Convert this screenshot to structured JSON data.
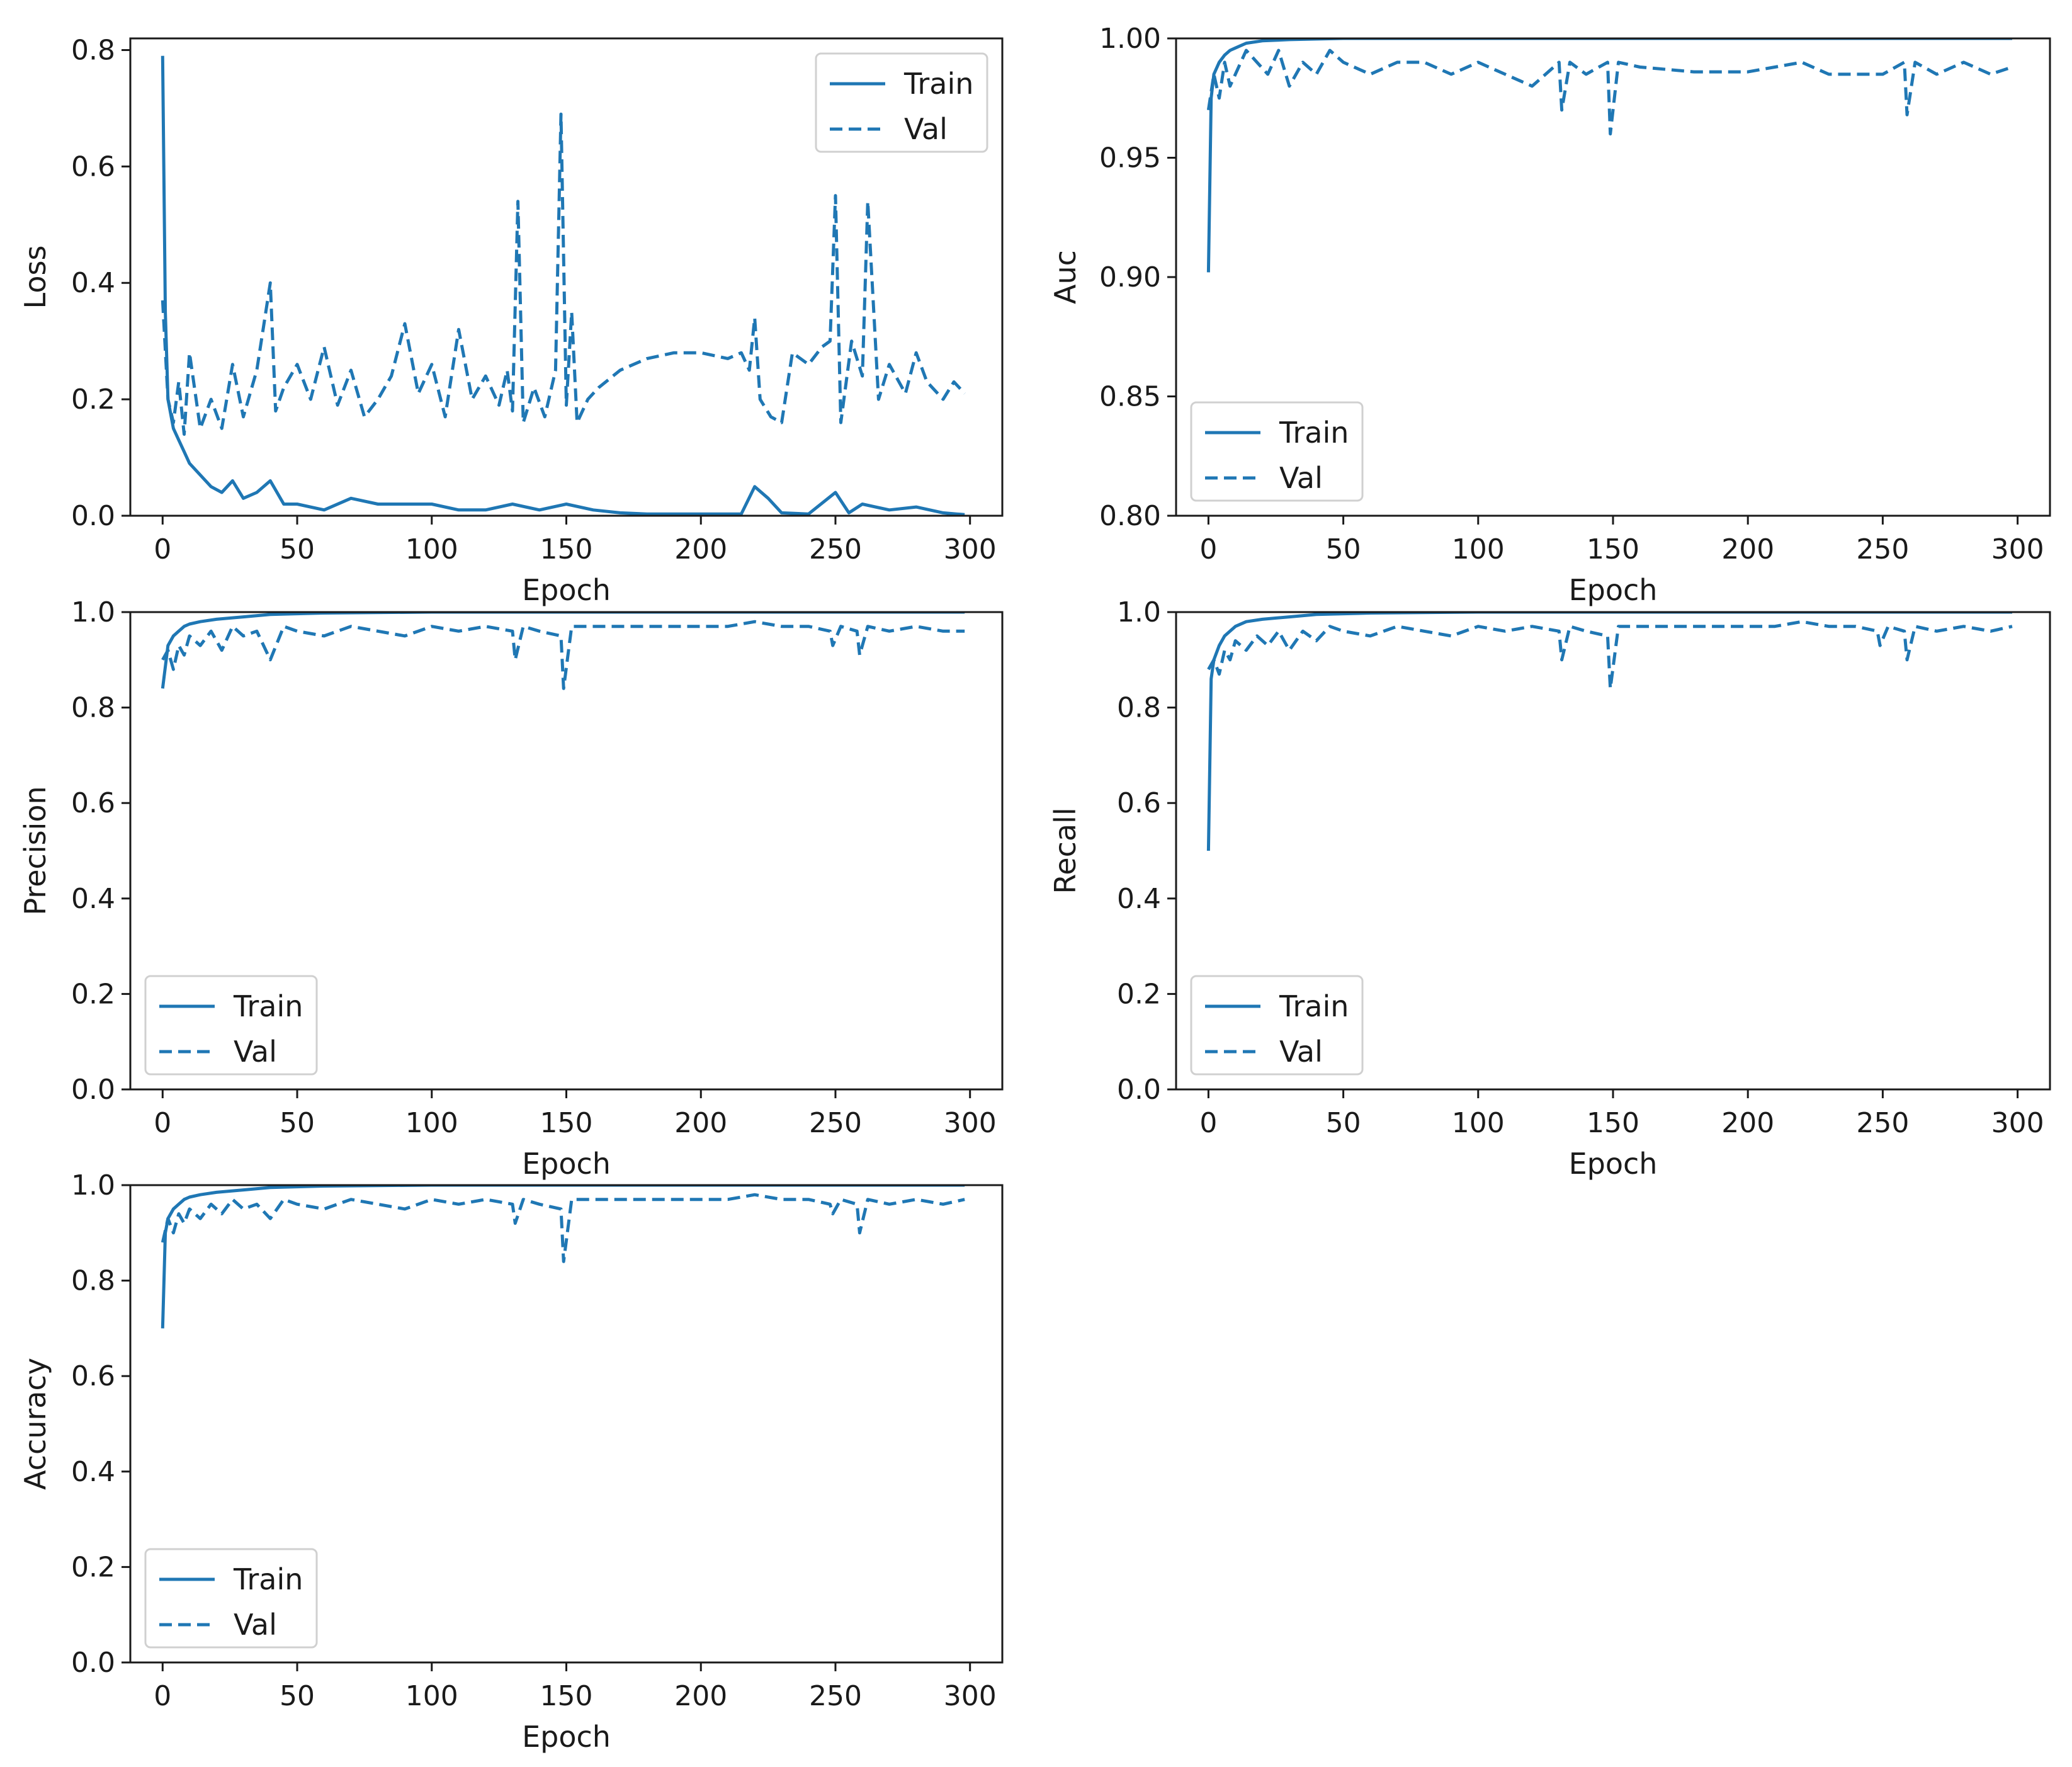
{
  "chart_data": [
    {
      "type": "line",
      "xlabel": "Epoch",
      "ylabel": "Loss",
      "xlim": [
        -12,
        312
      ],
      "ylim": [
        0.0,
        0.82
      ],
      "xticks": [
        "0",
        "50",
        "100",
        "150",
        "200",
        "250",
        "300"
      ],
      "yticks": [
        "0.0",
        "0.2",
        "0.4",
        "0.6",
        "0.8"
      ],
      "legend_loc": "upper right",
      "series": [
        {
          "name": "Train",
          "style": "solid",
          "x": [
            0,
            1,
            2,
            4,
            6,
            8,
            10,
            14,
            18,
            22,
            26,
            30,
            35,
            40,
            45,
            50,
            60,
            70,
            80,
            90,
            100,
            110,
            120,
            130,
            140,
            150,
            160,
            170,
            180,
            200,
            215,
            220,
            225,
            230,
            240,
            250,
            255,
            260,
            270,
            280,
            290,
            295,
            298
          ],
          "y": [
            0.79,
            0.35,
            0.2,
            0.15,
            0.13,
            0.11,
            0.09,
            0.07,
            0.05,
            0.04,
            0.06,
            0.03,
            0.04,
            0.06,
            0.02,
            0.02,
            0.01,
            0.03,
            0.02,
            0.02,
            0.02,
            0.01,
            0.01,
            0.02,
            0.01,
            0.02,
            0.01,
            0.005,
            0.003,
            0.003,
            0.003,
            0.05,
            0.03,
            0.005,
            0.003,
            0.04,
            0.005,
            0.02,
            0.01,
            0.015,
            0.005,
            0.003,
            0.002
          ]
        },
        {
          "name": "Val",
          "style": "dashed",
          "x": [
            0,
            2,
            4,
            6,
            8,
            10,
            14,
            18,
            22,
            26,
            30,
            35,
            40,
            42,
            45,
            50,
            55,
            60,
            65,
            70,
            75,
            80,
            85,
            90,
            95,
            100,
            105,
            110,
            115,
            120,
            125,
            128,
            130,
            132,
            134,
            138,
            142,
            146,
            148,
            150,
            152,
            154,
            158,
            162,
            170,
            180,
            190,
            200,
            210,
            215,
            218,
            220,
            222,
            226,
            230,
            234,
            240,
            245,
            248,
            250,
            252,
            256,
            260,
            262,
            266,
            270,
            276,
            280,
            284,
            290,
            294,
            298
          ],
          "y": [
            0.37,
            0.2,
            0.16,
            0.23,
            0.14,
            0.28,
            0.15,
            0.2,
            0.15,
            0.26,
            0.17,
            0.25,
            0.4,
            0.18,
            0.22,
            0.26,
            0.2,
            0.29,
            0.19,
            0.25,
            0.17,
            0.2,
            0.24,
            0.33,
            0.21,
            0.26,
            0.17,
            0.32,
            0.2,
            0.24,
            0.19,
            0.25,
            0.18,
            0.54,
            0.16,
            0.22,
            0.17,
            0.25,
            0.69,
            0.19,
            0.35,
            0.16,
            0.2,
            0.22,
            0.25,
            0.27,
            0.28,
            0.28,
            0.27,
            0.28,
            0.25,
            0.34,
            0.2,
            0.17,
            0.16,
            0.28,
            0.26,
            0.29,
            0.3,
            0.55,
            0.16,
            0.3,
            0.24,
            0.54,
            0.2,
            0.26,
            0.21,
            0.28,
            0.23,
            0.2,
            0.23,
            0.21
          ]
        }
      ]
    },
    {
      "type": "line",
      "xlabel": "Epoch",
      "ylabel": "Auc",
      "xlim": [
        -12,
        312
      ],
      "ylim": [
        0.8,
        1.0
      ],
      "xticks": [
        "0",
        "50",
        "100",
        "150",
        "200",
        "250",
        "300"
      ],
      "yticks": [
        "0.80",
        "0.85",
        "0.90",
        "0.95",
        "1.00"
      ],
      "legend_loc": "lower left",
      "series": [
        {
          "name": "Train",
          "style": "solid",
          "x": [
            0,
            1,
            2,
            4,
            6,
            8,
            10,
            14,
            20,
            30,
            50,
            100,
            150,
            200,
            250,
            298
          ],
          "y": [
            0.902,
            0.975,
            0.985,
            0.99,
            0.993,
            0.995,
            0.996,
            0.998,
            0.999,
            0.9995,
            1.0,
            1.0,
            1.0,
            1.0,
            1.0,
            1.0
          ]
        },
        {
          "name": "Val",
          "style": "dashed",
          "x": [
            0,
            2,
            4,
            6,
            8,
            10,
            14,
            18,
            22,
            26,
            30,
            35,
            40,
            45,
            50,
            60,
            70,
            80,
            90,
            100,
            110,
            120,
            130,
            131,
            134,
            140,
            148,
            149,
            152,
            160,
            170,
            180,
            190,
            200,
            210,
            220,
            230,
            240,
            250,
            258,
            259,
            262,
            270,
            280,
            290,
            298
          ],
          "y": [
            0.97,
            0.985,
            0.975,
            0.99,
            0.98,
            0.985,
            0.995,
            0.99,
            0.985,
            0.995,
            0.98,
            0.99,
            0.985,
            0.995,
            0.99,
            0.985,
            0.99,
            0.99,
            0.985,
            0.99,
            0.985,
            0.98,
            0.99,
            0.97,
            0.99,
            0.985,
            0.99,
            0.96,
            0.99,
            0.988,
            0.987,
            0.986,
            0.986,
            0.986,
            0.988,
            0.99,
            0.985,
            0.985,
            0.985,
            0.99,
            0.968,
            0.99,
            0.985,
            0.99,
            0.985,
            0.988
          ]
        }
      ]
    },
    {
      "type": "line",
      "xlabel": "Epoch",
      "ylabel": "Precision",
      "xlim": [
        -12,
        312
      ],
      "ylim": [
        0.0,
        1.0
      ],
      "xticks": [
        "0",
        "50",
        "100",
        "150",
        "200",
        "250",
        "300"
      ],
      "yticks": [
        "0.0",
        "0.2",
        "0.4",
        "0.6",
        "0.8",
        "1.0"
      ],
      "legend_loc": "lower left",
      "series": [
        {
          "name": "Train",
          "style": "solid",
          "x": [
            0,
            2,
            4,
            6,
            8,
            10,
            14,
            20,
            30,
            40,
            60,
            100,
            150,
            200,
            250,
            298
          ],
          "y": [
            0.84,
            0.93,
            0.95,
            0.96,
            0.97,
            0.975,
            0.98,
            0.985,
            0.99,
            0.995,
            0.998,
            1.0,
            1.0,
            1.0,
            1.0,
            1.0
          ]
        },
        {
          "name": "Val",
          "style": "dashed",
          "x": [
            0,
            2,
            4,
            6,
            8,
            10,
            14,
            18,
            22,
            26,
            30,
            35,
            40,
            45,
            50,
            60,
            70,
            80,
            90,
            100,
            110,
            120,
            130,
            131,
            134,
            140,
            148,
            149,
            152,
            160,
            170,
            180,
            190,
            200,
            210,
            220,
            230,
            240,
            248,
            249,
            252,
            258,
            259,
            262,
            270,
            280,
            290,
            298
          ],
          "y": [
            0.9,
            0.92,
            0.88,
            0.93,
            0.91,
            0.95,
            0.93,
            0.96,
            0.92,
            0.97,
            0.95,
            0.96,
            0.9,
            0.97,
            0.96,
            0.95,
            0.97,
            0.96,
            0.95,
            0.97,
            0.96,
            0.97,
            0.96,
            0.9,
            0.97,
            0.96,
            0.95,
            0.84,
            0.97,
            0.97,
            0.97,
            0.97,
            0.97,
            0.97,
            0.97,
            0.98,
            0.97,
            0.97,
            0.96,
            0.93,
            0.97,
            0.96,
            0.91,
            0.97,
            0.96,
            0.97,
            0.96,
            0.96
          ]
        }
      ]
    },
    {
      "type": "line",
      "xlabel": "Epoch",
      "ylabel": "Recall",
      "xlim": [
        -12,
        312
      ],
      "ylim": [
        0.0,
        1.0
      ],
      "xticks": [
        "0",
        "50",
        "100",
        "150",
        "200",
        "250",
        "300"
      ],
      "yticks": [
        "0.0",
        "0.2",
        "0.4",
        "0.6",
        "0.8",
        "1.0"
      ],
      "legend_loc": "lower left",
      "series": [
        {
          "name": "Train",
          "style": "solid",
          "x": [
            0,
            1,
            2,
            4,
            6,
            8,
            10,
            14,
            20,
            30,
            40,
            60,
            100,
            150,
            200,
            250,
            298
          ],
          "y": [
            0.5,
            0.86,
            0.9,
            0.93,
            0.95,
            0.96,
            0.97,
            0.98,
            0.985,
            0.99,
            0.995,
            0.998,
            1.0,
            1.0,
            1.0,
            1.0,
            1.0
          ]
        },
        {
          "name": "Val",
          "style": "dashed",
          "x": [
            0,
            2,
            4,
            6,
            8,
            10,
            14,
            18,
            22,
            26,
            30,
            35,
            40,
            45,
            50,
            60,
            70,
            80,
            90,
            100,
            110,
            120,
            130,
            131,
            134,
            140,
            148,
            149,
            152,
            160,
            170,
            180,
            190,
            200,
            210,
            220,
            230,
            240,
            248,
            249,
            252,
            258,
            259,
            262,
            270,
            280,
            290,
            298
          ],
          "y": [
            0.88,
            0.9,
            0.87,
            0.92,
            0.9,
            0.94,
            0.92,
            0.95,
            0.93,
            0.96,
            0.92,
            0.96,
            0.94,
            0.97,
            0.96,
            0.95,
            0.97,
            0.96,
            0.95,
            0.97,
            0.96,
            0.97,
            0.96,
            0.9,
            0.97,
            0.96,
            0.95,
            0.84,
            0.97,
            0.97,
            0.97,
            0.97,
            0.97,
            0.97,
            0.97,
            0.98,
            0.97,
            0.97,
            0.96,
            0.93,
            0.97,
            0.96,
            0.9,
            0.97,
            0.96,
            0.97,
            0.96,
            0.97
          ]
        }
      ]
    },
    {
      "type": "line",
      "xlabel": "Epoch",
      "ylabel": "Accuracy",
      "xlim": [
        -12,
        312
      ],
      "ylim": [
        0.0,
        1.0
      ],
      "xticks": [
        "0",
        "50",
        "100",
        "150",
        "200",
        "250",
        "300"
      ],
      "yticks": [
        "0.0",
        "0.2",
        "0.4",
        "0.6",
        "0.8",
        "1.0"
      ],
      "legend_loc": "lower left",
      "series": [
        {
          "name": "Train",
          "style": "solid",
          "x": [
            0,
            1,
            2,
            4,
            6,
            8,
            10,
            14,
            20,
            30,
            40,
            60,
            100,
            150,
            200,
            250,
            298
          ],
          "y": [
            0.7,
            0.9,
            0.93,
            0.95,
            0.96,
            0.97,
            0.975,
            0.98,
            0.985,
            0.99,
            0.995,
            0.998,
            1.0,
            1.0,
            1.0,
            1.0,
            1.0
          ]
        },
        {
          "name": "Val",
          "style": "dashed",
          "x": [
            0,
            2,
            4,
            6,
            8,
            10,
            14,
            18,
            22,
            26,
            30,
            35,
            40,
            45,
            50,
            60,
            70,
            80,
            90,
            100,
            110,
            120,
            130,
            131,
            134,
            140,
            148,
            149,
            152,
            160,
            170,
            180,
            190,
            200,
            210,
            220,
            230,
            240,
            248,
            249,
            252,
            258,
            259,
            262,
            270,
            280,
            290,
            298
          ],
          "y": [
            0.88,
            0.93,
            0.9,
            0.94,
            0.92,
            0.95,
            0.93,
            0.96,
            0.94,
            0.97,
            0.95,
            0.96,
            0.93,
            0.97,
            0.96,
            0.95,
            0.97,
            0.96,
            0.95,
            0.97,
            0.96,
            0.97,
            0.96,
            0.92,
            0.97,
            0.96,
            0.95,
            0.84,
            0.97,
            0.97,
            0.97,
            0.97,
            0.97,
            0.97,
            0.97,
            0.98,
            0.97,
            0.97,
            0.96,
            0.94,
            0.97,
            0.96,
            0.9,
            0.97,
            0.96,
            0.97,
            0.96,
            0.97
          ]
        }
      ]
    }
  ],
  "colors": {
    "line": "#1f77b4",
    "axes": "#1a1a1a",
    "legend_border": "#d0d0d0"
  }
}
